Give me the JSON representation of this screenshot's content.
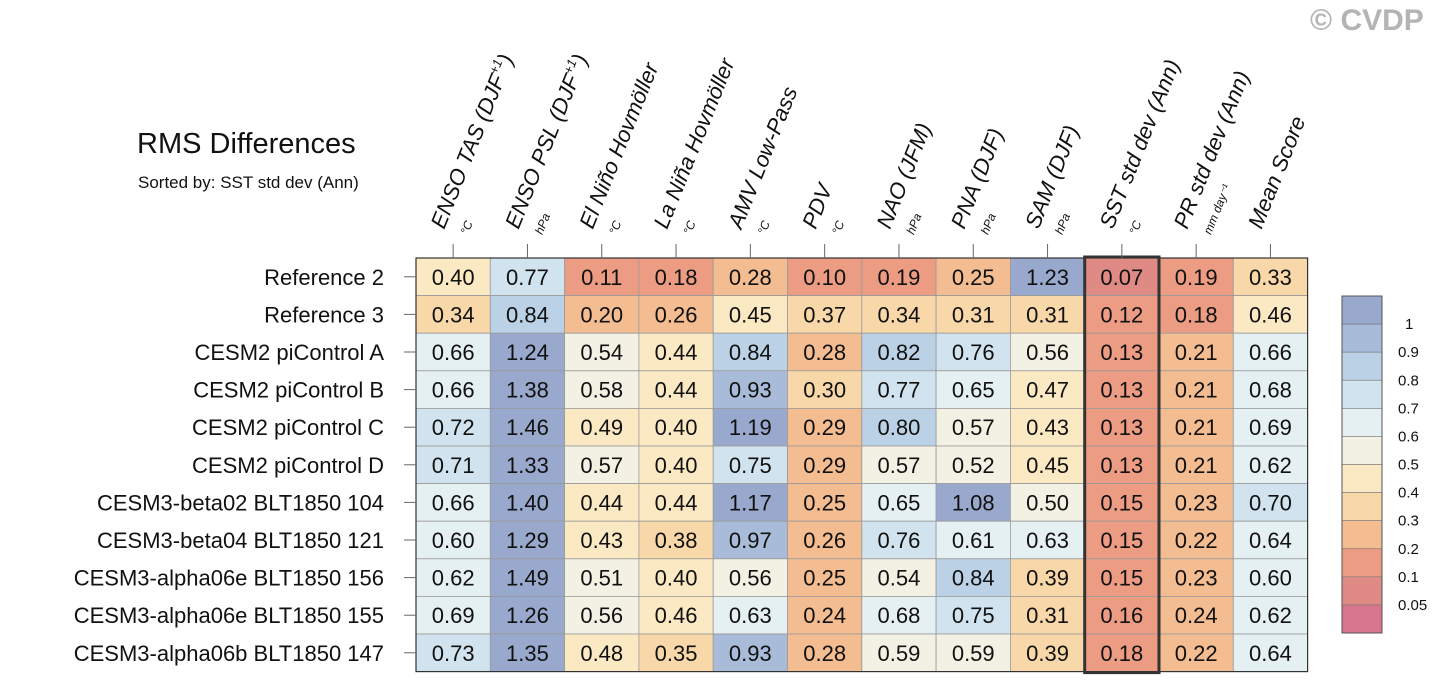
{
  "title": "RMS Differences",
  "subtitle": "Sorted by: SST std dev (Ann)",
  "copyright": "© CVDP",
  "highlight_column": "SST std dev (Ann)",
  "chart_data": {
    "type": "heatmap",
    "columns": [
      {
        "label": "ENSO TAS (DJF",
        "sup": "+1",
        "close": ")",
        "unit": "°C"
      },
      {
        "label": "ENSO PSL (DJF",
        "sup": "+1",
        "close": ")",
        "unit": "hPa"
      },
      {
        "label": "El Niño Hovmöller",
        "sup": "",
        "close": "",
        "unit": "°C"
      },
      {
        "label": "La Niña Hovmöller",
        "sup": "",
        "close": "",
        "unit": "°C"
      },
      {
        "label": "AMV Low-Pass",
        "sup": "",
        "close": "",
        "unit": "°C"
      },
      {
        "label": "PDV",
        "sup": "",
        "close": "",
        "unit": "°C"
      },
      {
        "label": "NAO (JFM)",
        "sup": "",
        "close": "",
        "unit": "hPa"
      },
      {
        "label": "PNA (DJF)",
        "sup": "",
        "close": "",
        "unit": "hPa"
      },
      {
        "label": "SAM (DJF)",
        "sup": "",
        "close": "",
        "unit": "hPa"
      },
      {
        "label": "SST std dev (Ann)",
        "sup": "",
        "close": "",
        "unit": "°C"
      },
      {
        "label": "PR std dev (Ann)",
        "sup": "",
        "close": "",
        "unit": "mm day⁻¹"
      },
      {
        "label": "Mean Score",
        "sup": "",
        "close": "",
        "unit": ""
      }
    ],
    "rows": [
      "Reference 2",
      "Reference 3",
      "CESM2 piControl A",
      "CESM2 piControl B",
      "CESM2 piControl C",
      "CESM2 piControl D",
      "CESM3-beta02 BLT1850 104",
      "CESM3-beta04 BLT1850 121",
      "CESM3-alpha06e BLT1850 156",
      "CESM3-alpha06e BLT1850 155",
      "CESM3-alpha06b BLT1850 147"
    ],
    "values": [
      [
        0.4,
        0.77,
        0.11,
        0.18,
        0.28,
        0.1,
        0.19,
        0.25,
        1.23,
        0.07,
        0.19,
        0.33
      ],
      [
        0.34,
        0.84,
        0.2,
        0.26,
        0.45,
        0.37,
        0.34,
        0.31,
        0.31,
        0.12,
        0.18,
        0.46
      ],
      [
        0.66,
        1.24,
        0.54,
        0.44,
        0.84,
        0.28,
        0.82,
        0.76,
        0.56,
        0.13,
        0.21,
        0.66
      ],
      [
        0.66,
        1.38,
        0.58,
        0.44,
        0.93,
        0.3,
        0.77,
        0.65,
        0.47,
        0.13,
        0.21,
        0.68
      ],
      [
        0.72,
        1.46,
        0.49,
        0.4,
        1.19,
        0.29,
        0.8,
        0.57,
        0.43,
        0.13,
        0.21,
        0.69
      ],
      [
        0.71,
        1.33,
        0.57,
        0.4,
        0.75,
        0.29,
        0.57,
        0.52,
        0.45,
        0.13,
        0.21,
        0.62
      ],
      [
        0.66,
        1.4,
        0.44,
        0.44,
        1.17,
        0.25,
        0.65,
        1.08,
        0.5,
        0.15,
        0.23,
        0.7
      ],
      [
        0.6,
        1.29,
        0.43,
        0.38,
        0.97,
        0.26,
        0.76,
        0.61,
        0.63,
        0.15,
        0.22,
        0.64
      ],
      [
        0.62,
        1.49,
        0.51,
        0.4,
        0.56,
        0.25,
        0.54,
        0.84,
        0.39,
        0.15,
        0.23,
        0.6
      ],
      [
        0.69,
        1.26,
        0.56,
        0.46,
        0.63,
        0.24,
        0.68,
        0.75,
        0.31,
        0.16,
        0.24,
        0.62
      ],
      [
        0.73,
        1.35,
        0.48,
        0.35,
        0.93,
        0.28,
        0.59,
        0.59,
        0.39,
        0.18,
        0.22,
        0.64
      ]
    ],
    "colorbar": {
      "tick_labels": [
        "1",
        "0.9",
        "0.8",
        "0.7",
        "0.6",
        "0.5",
        "0.4",
        "0.3",
        "0.2",
        "0.1",
        "0.05"
      ],
      "colors": [
        "#99a8cd",
        "#a8bcd9",
        "#bbd1e5",
        "#d0e3ee",
        "#e5f0f2",
        "#f3f1e4",
        "#fbe9c4",
        "#f8d8a9",
        "#f3bc91",
        "#ec9c83",
        "#e08a85",
        "#d7768c"
      ],
      "level_boundaries": [
        1.0,
        0.9,
        0.8,
        0.7,
        0.6,
        0.5,
        0.4,
        0.3,
        0.2,
        0.1,
        0.05
      ]
    }
  }
}
